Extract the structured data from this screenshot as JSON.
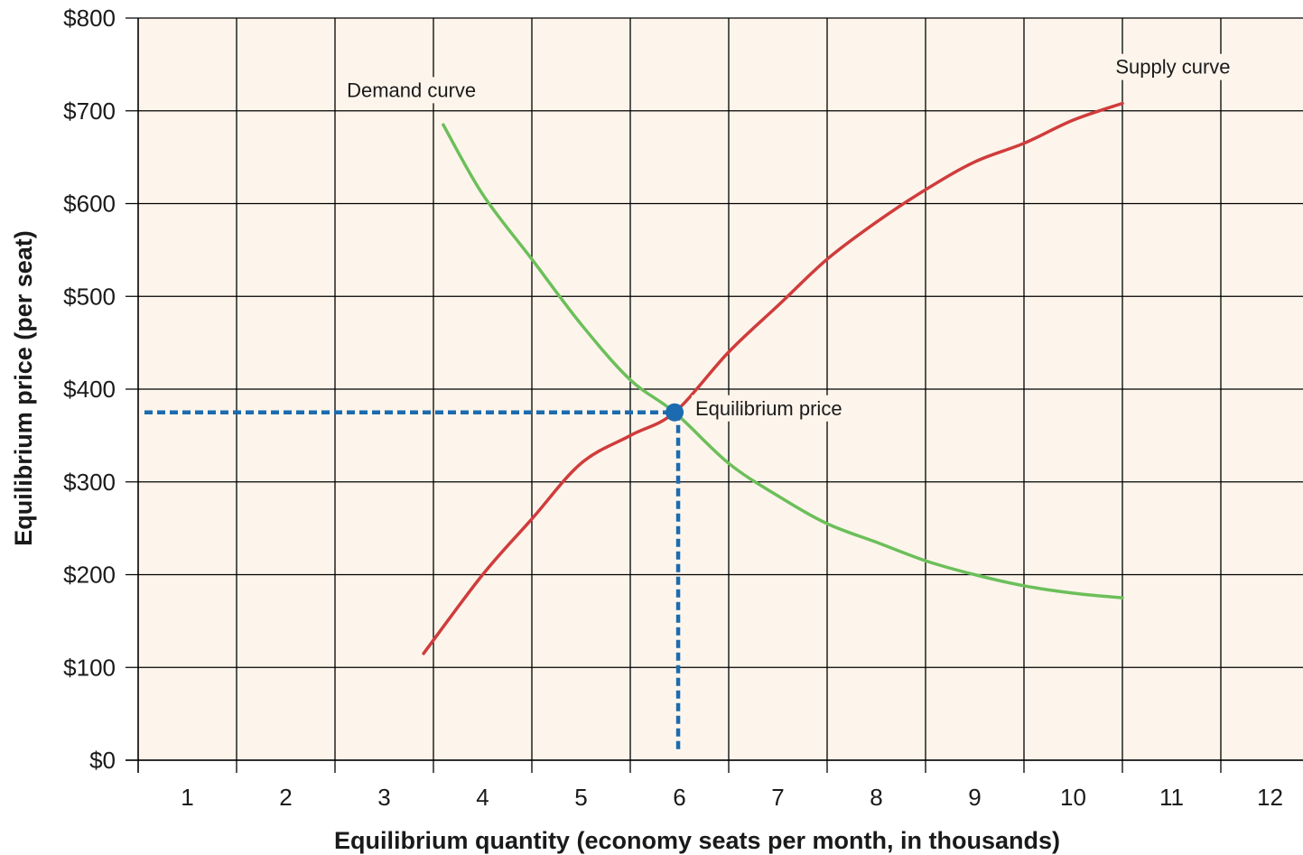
{
  "chart_data": {
    "type": "line",
    "xlabel": "Equilibrium quantity (economy seats per month, in thousands)",
    "ylabel": "Equilibrium price (per seat)",
    "xlim": [
      0,
      12
    ],
    "ylim": [
      0,
      800
    ],
    "x_ticks": [
      1,
      2,
      3,
      4,
      5,
      6,
      7,
      8,
      9,
      10,
      11,
      12
    ],
    "y_ticks": [
      0,
      100,
      200,
      300,
      400,
      500,
      600,
      700,
      800
    ],
    "y_tick_labels": [
      "$0",
      "$100",
      "$200",
      "$300",
      "$400",
      "$500",
      "$600",
      "$700",
      "$800"
    ],
    "grid": true,
    "series": [
      {
        "name": "Demand curve",
        "color": "#6cbf5a",
        "points": [
          [
            3.1,
            685
          ],
          [
            3.5,
            610
          ],
          [
            4.0,
            540
          ],
          [
            4.5,
            470
          ],
          [
            5.0,
            410
          ],
          [
            5.45,
            375
          ],
          [
            6.0,
            320
          ],
          [
            6.5,
            285
          ],
          [
            7.0,
            255
          ],
          [
            7.5,
            235
          ],
          [
            8.0,
            215
          ],
          [
            8.5,
            200
          ],
          [
            9.0,
            188
          ],
          [
            9.5,
            180
          ],
          [
            10.0,
            175
          ]
        ]
      },
      {
        "name": "Supply curve",
        "color": "#d03c3c",
        "points": [
          [
            2.9,
            115
          ],
          [
            3.5,
            200
          ],
          [
            4.0,
            260
          ],
          [
            4.5,
            320
          ],
          [
            5.0,
            350
          ],
          [
            5.45,
            375
          ],
          [
            6.0,
            440
          ],
          [
            6.5,
            490
          ],
          [
            7.0,
            540
          ],
          [
            7.5,
            580
          ],
          [
            8.0,
            615
          ],
          [
            8.5,
            645
          ],
          [
            9.0,
            665
          ],
          [
            9.5,
            690
          ],
          [
            10.0,
            708
          ]
        ]
      }
    ],
    "equilibrium": {
      "x": 5.45,
      "y": 375,
      "color": "#1c6bb0"
    },
    "annotations": [
      {
        "text": "Demand curve",
        "x": 2.12,
        "y": 715
      },
      {
        "text": "Supply curve",
        "x": 9.93,
        "y": 740
      },
      {
        "text": "Equilibrium price",
        "x": 5.66,
        "y": 372
      }
    ],
    "colors": {
      "background": "#fdf5eb",
      "grid": "#000000",
      "guide": "#1c6bb0"
    }
  }
}
